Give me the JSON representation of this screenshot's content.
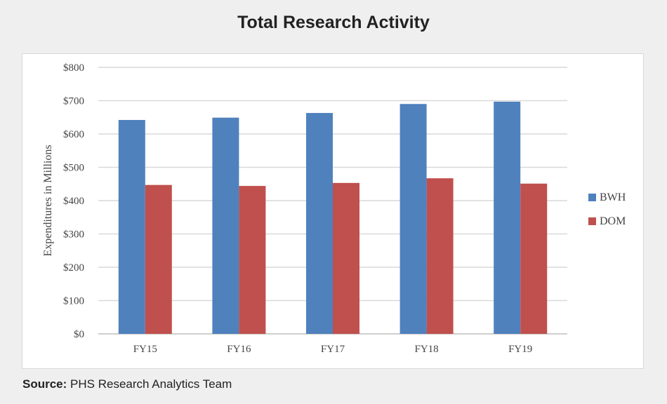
{
  "chart_data": {
    "type": "bar",
    "title": "Total Research Activity",
    "ylabel": "Expenditures in Millions",
    "xlabel": "",
    "categories": [
      "FY15",
      "FY16",
      "FY17",
      "FY18",
      "FY19"
    ],
    "series": [
      {
        "name": "BWH",
        "color": "#4f81bd",
        "values": [
          642,
          649,
          663,
          690,
          697
        ]
      },
      {
        "name": "DOM",
        "color": "#c0504d",
        "values": [
          447,
          444,
          453,
          467,
          451
        ]
      }
    ],
    "ylim": [
      0,
      800
    ],
    "yticks": [
      0,
      100,
      200,
      300,
      400,
      500,
      600,
      700,
      800
    ],
    "ytick_labels": [
      "$0",
      "$100",
      "$200",
      "$300",
      "$400",
      "$500",
      "$600",
      "$700",
      "$800"
    ],
    "grid": true,
    "legend": "right"
  },
  "source": {
    "label": "Source:",
    "text": "PHS Research Analytics Team"
  }
}
